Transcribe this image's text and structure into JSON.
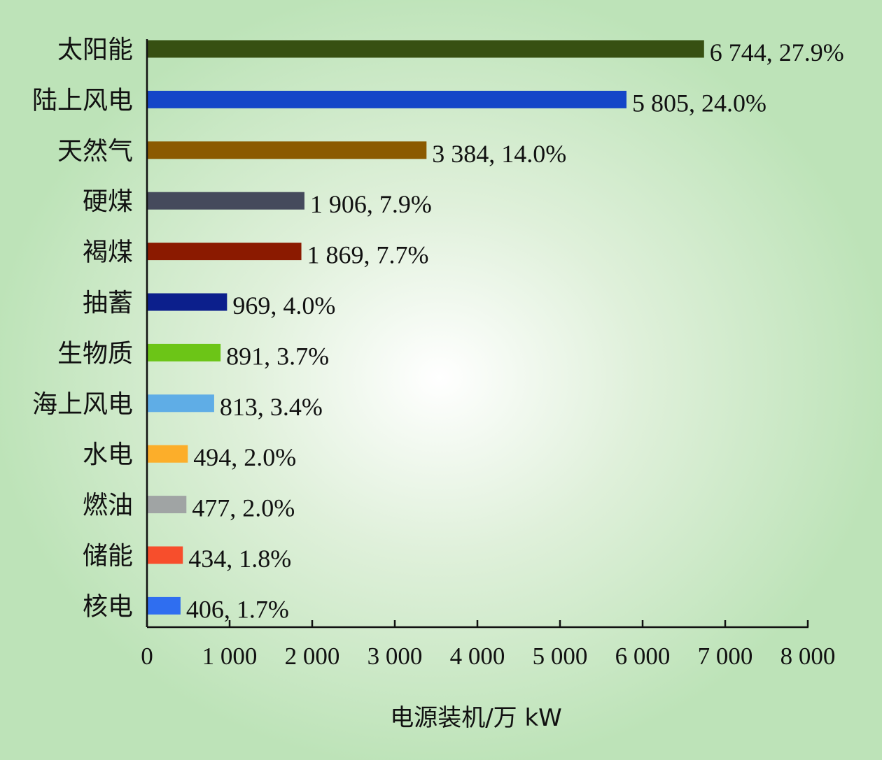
{
  "chart_data": {
    "type": "bar",
    "orientation": "horizontal",
    "categories": [
      "太阳能",
      "陆上风电",
      "天然气",
      "硬煤",
      "褐煤",
      "抽蓄",
      "生物质",
      "海上风电",
      "水电",
      "燃油",
      "储能",
      "核电"
    ],
    "values": [
      6744,
      5805,
      3384,
      1906,
      1869,
      969,
      891,
      813,
      494,
      477,
      434,
      406
    ],
    "data_labels": [
      "6 744, 27.9%",
      "5 805, 24.0%",
      "3 384, 14.0%",
      "1 906, 7.9%",
      "1 869, 7.7%",
      "969, 4.0%",
      "891, 3.7%",
      "813, 3.4%",
      "494, 2.0%",
      "477, 2.0%",
      "434, 1.8%",
      "406, 1.7%"
    ],
    "colors": [
      "#375012",
      "#1446c8",
      "#8b5a00",
      "#454a5c",
      "#8b1a00",
      "#0c1f8c",
      "#6cc517",
      "#5fade6",
      "#fcae2a",
      "#a0a4a4",
      "#f74e2c",
      "#2f6ef0"
    ],
    "xlim": [
      0,
      8000
    ],
    "xticks": [
      0,
      1000,
      2000,
      3000,
      4000,
      5000,
      6000,
      7000,
      8000
    ],
    "xtick_labels": [
      "0",
      "1 000",
      "2 000",
      "3 000",
      "4 000",
      "5 000",
      "6 000",
      "7 000",
      "8 000"
    ],
    "xlabel": "电源装机/万 kW",
    "ylabel": "",
    "title": "",
    "grid": false,
    "legend": "none"
  }
}
